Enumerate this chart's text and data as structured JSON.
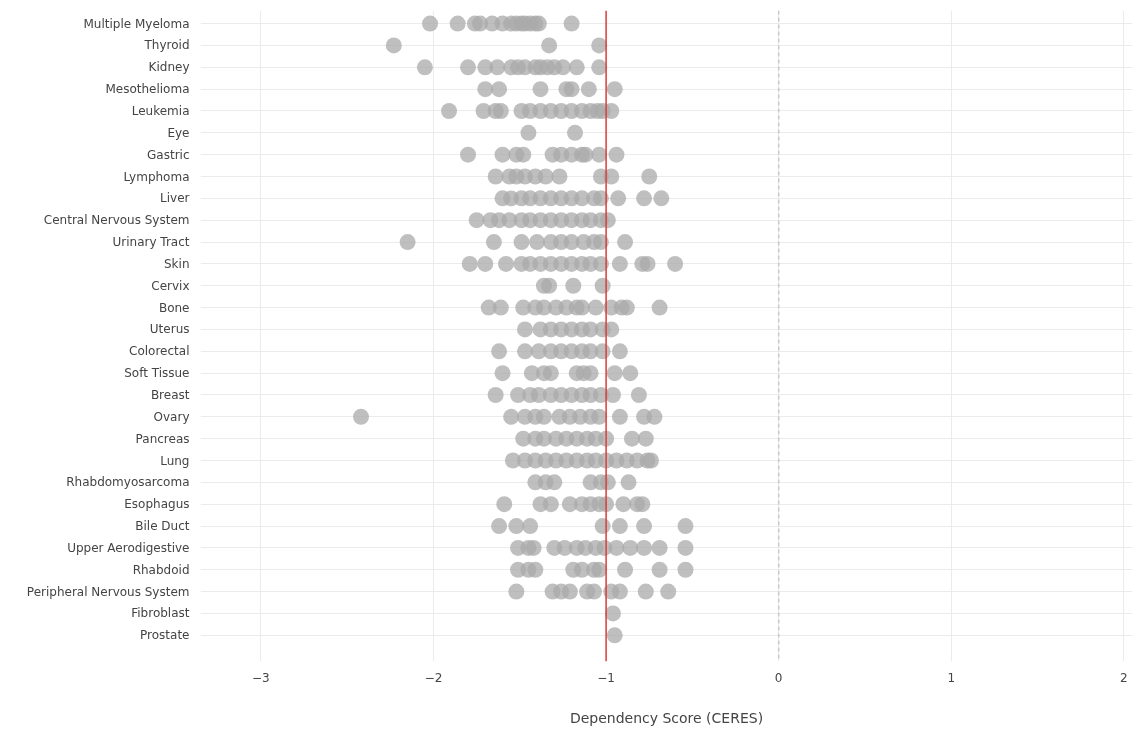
{
  "chart_data": {
    "type": "scatter",
    "orientation": "horizontal",
    "xlabel": "Dependency Score (CERES)",
    "categories": [
      "Multiple Myeloma",
      "Thyroid",
      "Kidney",
      "Mesothelioma",
      "Leukemia",
      "Eye",
      "Gastric",
      "Lymphoma",
      "Liver",
      "Central Nervous System",
      "Urinary Tract",
      "Skin",
      "Cervix",
      "Bone",
      "Uterus",
      "Colorectal",
      "Soft Tissue",
      "Breast",
      "Ovary",
      "Pancreas",
      "Lung",
      "Rhabdomyosarcoma",
      "Esophagus",
      "Bile Duct",
      "Upper Aerodigestive",
      "Rhabdoid",
      "Peripheral Nervous System",
      "Fibroblast",
      "Prostate"
    ],
    "series": [
      {
        "color": "#a9a9a9",
        "x": [
          "Multiple Myeloma",
          "Multiple Myeloma",
          "Multiple Myeloma",
          "Multiple Myeloma",
          "Multiple Myeloma",
          "Multiple Myeloma",
          "Multiple Myeloma",
          "Multiple Myeloma",
          "Multiple Myeloma",
          "Multiple Myeloma",
          "Multiple Myeloma",
          "Multiple Myeloma",
          "Multiple Myeloma",
          "Multiple Myeloma",
          "Thyroid",
          "Thyroid",
          "Thyroid",
          "Kidney",
          "Kidney",
          "Kidney",
          "Kidney",
          "Kidney",
          "Kidney",
          "Kidney",
          "Kidney",
          "Kidney",
          "Kidney",
          "Kidney",
          "Kidney",
          "Kidney",
          "Kidney",
          "Mesothelioma",
          "Mesothelioma",
          "Mesothelioma",
          "Mesothelioma",
          "Mesothelioma",
          "Mesothelioma",
          "Mesothelioma",
          "Leukemia",
          "Leukemia",
          "Leukemia",
          "Leukemia",
          "Leukemia",
          "Leukemia",
          "Leukemia",
          "Leukemia",
          "Leukemia",
          "Leukemia",
          "Leukemia",
          "Leukemia",
          "Leukemia",
          "Leukemia",
          "Leukemia",
          "Eye",
          "Eye",
          "Gastric",
          "Gastric",
          "Gastric",
          "Gastric",
          "Gastric",
          "Gastric",
          "Gastric",
          "Gastric",
          "Gastric",
          "Gastric",
          "Gastric",
          "Lymphoma",
          "Lymphoma",
          "Lymphoma",
          "Lymphoma",
          "Lymphoma",
          "Lymphoma",
          "Lymphoma",
          "Lymphoma",
          "Lymphoma",
          "Lymphoma",
          "Liver",
          "Liver",
          "Liver",
          "Liver",
          "Liver",
          "Liver",
          "Liver",
          "Liver",
          "Liver",
          "Liver",
          "Liver",
          "Liver",
          "Liver",
          "Liver",
          "Central Nervous System",
          "Central Nervous System",
          "Central Nervous System",
          "Central Nervous System",
          "Central Nervous System",
          "Central Nervous System",
          "Central Nervous System",
          "Central Nervous System",
          "Central Nervous System",
          "Central Nervous System",
          "Central Nervous System",
          "Central Nervous System",
          "Central Nervous System",
          "Central Nervous System",
          "Urinary Tract",
          "Urinary Tract",
          "Urinary Tract",
          "Urinary Tract",
          "Urinary Tract",
          "Urinary Tract",
          "Urinary Tract",
          "Urinary Tract",
          "Urinary Tract",
          "Urinary Tract",
          "Urinary Tract",
          "Skin",
          "Skin",
          "Skin",
          "Skin",
          "Skin",
          "Skin",
          "Skin",
          "Skin",
          "Skin",
          "Skin",
          "Skin",
          "Skin",
          "Skin",
          "Skin",
          "Skin",
          "Skin",
          "Cervix",
          "Cervix",
          "Cervix",
          "Cervix",
          "Bone",
          "Bone",
          "Bone",
          "Bone",
          "Bone",
          "Bone",
          "Bone",
          "Bone",
          "Bone",
          "Bone",
          "Bone",
          "Bone",
          "Bone",
          "Bone",
          "Uterus",
          "Uterus",
          "Uterus",
          "Uterus",
          "Uterus",
          "Uterus",
          "Uterus",
          "Uterus",
          "Uterus",
          "Colorectal",
          "Colorectal",
          "Colorectal",
          "Colorectal",
          "Colorectal",
          "Colorectal",
          "Colorectal",
          "Colorectal",
          "Colorectal",
          "Colorectal",
          "Soft Tissue",
          "Soft Tissue",
          "Soft Tissue",
          "Soft Tissue",
          "Soft Tissue",
          "Soft Tissue",
          "Soft Tissue",
          "Soft Tissue",
          "Soft Tissue",
          "Breast",
          "Breast",
          "Breast",
          "Breast",
          "Breast",
          "Breast",
          "Breast",
          "Breast",
          "Breast",
          "Breast",
          "Breast",
          "Breast",
          "Ovary",
          "Ovary",
          "Ovary",
          "Ovary",
          "Ovary",
          "Ovary",
          "Ovary",
          "Ovary",
          "Ovary",
          "Ovary",
          "Ovary",
          "Ovary",
          "Ovary",
          "Pancreas",
          "Pancreas",
          "Pancreas",
          "Pancreas",
          "Pancreas",
          "Pancreas",
          "Pancreas",
          "Pancreas",
          "Pancreas",
          "Pancreas",
          "Pancreas",
          "Lung",
          "Lung",
          "Lung",
          "Lung",
          "Lung",
          "Lung",
          "Lung",
          "Lung",
          "Lung",
          "Lung",
          "Lung",
          "Lung",
          "Lung",
          "Lung",
          "Lung",
          "Rhabdomyosarcoma",
          "Rhabdomyosarcoma",
          "Rhabdomyosarcoma",
          "Rhabdomyosarcoma",
          "Rhabdomyosarcoma",
          "Rhabdomyosarcoma",
          "Rhabdomyosarcoma",
          "Esophagus",
          "Esophagus",
          "Esophagus",
          "Esophagus",
          "Esophagus",
          "Esophagus",
          "Esophagus",
          "Esophagus",
          "Esophagus",
          "Esophagus",
          "Esophagus",
          "Bile Duct",
          "Bile Duct",
          "Bile Duct",
          "Bile Duct",
          "Bile Duct",
          "Bile Duct",
          "Bile Duct",
          "Upper Aerodigestive",
          "Upper Aerodigestive",
          "Upper Aerodigestive",
          "Upper Aerodigestive",
          "Upper Aerodigestive",
          "Upper Aerodigestive",
          "Upper Aerodigestive",
          "Upper Aerodigestive",
          "Upper Aerodigestive",
          "Upper Aerodigestive",
          "Upper Aerodigestive",
          "Upper Aerodigestive",
          "Upper Aerodigestive",
          "Upper Aerodigestive",
          "Rhabdoid",
          "Rhabdoid",
          "Rhabdoid",
          "Rhabdoid",
          "Rhabdoid",
          "Rhabdoid",
          "Rhabdoid",
          "Rhabdoid",
          "Rhabdoid",
          "Rhabdoid",
          "Peripheral Nervous System",
          "Peripheral Nervous System",
          "Peripheral Nervous System",
          "Peripheral Nervous System",
          "Peripheral Nervous System",
          "Peripheral Nervous System",
          "Peripheral Nervous System",
          "Peripheral Nervous System",
          "Peripheral Nervous System",
          "Peripheral Nervous System",
          "Fibroblast",
          "Prostate"
        ],
        "values": [
          -2.02,
          -1.86,
          -1.76,
          -1.73,
          -1.66,
          -1.6,
          -1.55,
          -1.52,
          -1.49,
          -1.47,
          -1.44,
          -1.41,
          -1.39,
          -1.2,
          -2.23,
          -1.33,
          -1.04,
          -2.05,
          -1.8,
          -1.7,
          -1.63,
          -1.55,
          -1.51,
          -1.47,
          -1.41,
          -1.38,
          -1.34,
          -1.3,
          -1.25,
          -1.17,
          -1.04,
          -1.7,
          -1.62,
          -1.38,
          -1.23,
          -1.2,
          -1.1,
          -0.95,
          -1.91,
          -1.71,
          -1.64,
          -1.61,
          -1.49,
          -1.44,
          -1.38,
          -1.32,
          -1.26,
          -1.2,
          -1.14,
          -1.09,
          -1.05,
          -1.02,
          -0.97,
          -1.45,
          -1.18,
          -1.8,
          -1.6,
          -1.52,
          -1.48,
          -1.31,
          -1.26,
          -1.2,
          -1.14,
          -1.12,
          -1.04,
          -0.94,
          -1.64,
          -1.56,
          -1.52,
          -1.47,
          -1.41,
          -1.35,
          -1.27,
          -1.03,
          -0.97,
          -0.75,
          -1.6,
          -1.55,
          -1.49,
          -1.44,
          -1.38,
          -1.32,
          -1.26,
          -1.2,
          -1.14,
          -1.07,
          -1.03,
          -0.93,
          -0.78,
          -0.68,
          -1.75,
          -1.67,
          -1.62,
          -1.56,
          -1.49,
          -1.44,
          -1.38,
          -1.32,
          -1.26,
          -1.2,
          -1.14,
          -1.09,
          -1.03,
          -0.99,
          -2.15,
          -1.65,
          -1.49,
          -1.4,
          -1.32,
          -1.26,
          -1.2,
          -1.13,
          -1.07,
          -1.03,
          -0.89,
          -1.79,
          -1.7,
          -1.58,
          -1.49,
          -1.44,
          -1.38,
          -1.32,
          -1.26,
          -1.2,
          -1.14,
          -1.09,
          -1.03,
          -0.92,
          -0.79,
          -0.76,
          -0.6,
          -1.36,
          -1.33,
          -1.19,
          -1.02,
          -1.68,
          -1.61,
          -1.48,
          -1.41,
          -1.36,
          -1.29,
          -1.23,
          -1.17,
          -1.14,
          -1.06,
          -0.97,
          -0.91,
          -0.88,
          -0.69,
          -1.47,
          -1.38,
          -1.32,
          -1.26,
          -1.2,
          -1.14,
          -1.09,
          -1.02,
          -0.97,
          -1.62,
          -1.47,
          -1.39,
          -1.32,
          -1.26,
          -1.2,
          -1.14,
          -1.09,
          -1.02,
          -0.92,
          -1.6,
          -1.43,
          -1.36,
          -1.32,
          -1.17,
          -1.13,
          -1.09,
          -0.95,
          -0.86,
          -1.64,
          -1.51,
          -1.44,
          -1.39,
          -1.32,
          -1.26,
          -1.2,
          -1.14,
          -1.09,
          -1.03,
          -0.96,
          -0.81,
          -2.42,
          -1.55,
          -1.47,
          -1.41,
          -1.36,
          -1.27,
          -1.21,
          -1.15,
          -1.09,
          -1.04,
          -0.92,
          -0.78,
          -0.72,
          -1.48,
          -1.41,
          -1.36,
          -1.29,
          -1.23,
          -1.17,
          -1.11,
          -1.06,
          -1.0,
          -0.85,
          -0.77,
          -1.54,
          -1.47,
          -1.41,
          -1.35,
          -1.29,
          -1.23,
          -1.17,
          -1.11,
          -1.06,
          -1.0,
          -0.94,
          -0.88,
          -0.82,
          -0.76,
          -0.74,
          -1.41,
          -1.35,
          -1.3,
          -1.09,
          -1.03,
          -0.99,
          -0.87,
          -1.59,
          -1.38,
          -1.32,
          -1.21,
          -1.14,
          -1.09,
          -1.04,
          -1.0,
          -0.9,
          -0.82,
          -0.79,
          -1.62,
          -1.52,
          -1.44,
          -1.02,
          -0.92,
          -0.78,
          -0.54,
          -1.51,
          -1.45,
          -1.42,
          -1.3,
          -1.24,
          -1.17,
          -1.12,
          -1.06,
          -1.01,
          -0.94,
          -0.86,
          -0.78,
          -0.69,
          -0.54,
          -1.51,
          -1.45,
          -1.41,
          -1.19,
          -1.14,
          -1.07,
          -1.04,
          -0.89,
          -0.69,
          -0.54,
          -1.52,
          -1.31,
          -1.26,
          -1.21,
          -1.11,
          -1.07,
          -0.97,
          -0.92,
          -0.77,
          -0.64,
          -0.96,
          -0.95
        ]
      }
    ],
    "xlim": [
      -3.35,
      2.05
    ],
    "xticks": [
      {
        "value": -3,
        "label": "−3"
      },
      {
        "value": -2,
        "label": "−2"
      },
      {
        "value": -1,
        "label": "−1"
      },
      0,
      1,
      2
    ],
    "ref_lines": [
      {
        "axis": "x",
        "value": -1,
        "color": "#e03a3a",
        "line_style": "solid"
      },
      {
        "axis": "x",
        "value": 0,
        "color": "#c8c8c8",
        "line_style": "dashed"
      }
    ],
    "grid": true,
    "marker": "circle"
  }
}
